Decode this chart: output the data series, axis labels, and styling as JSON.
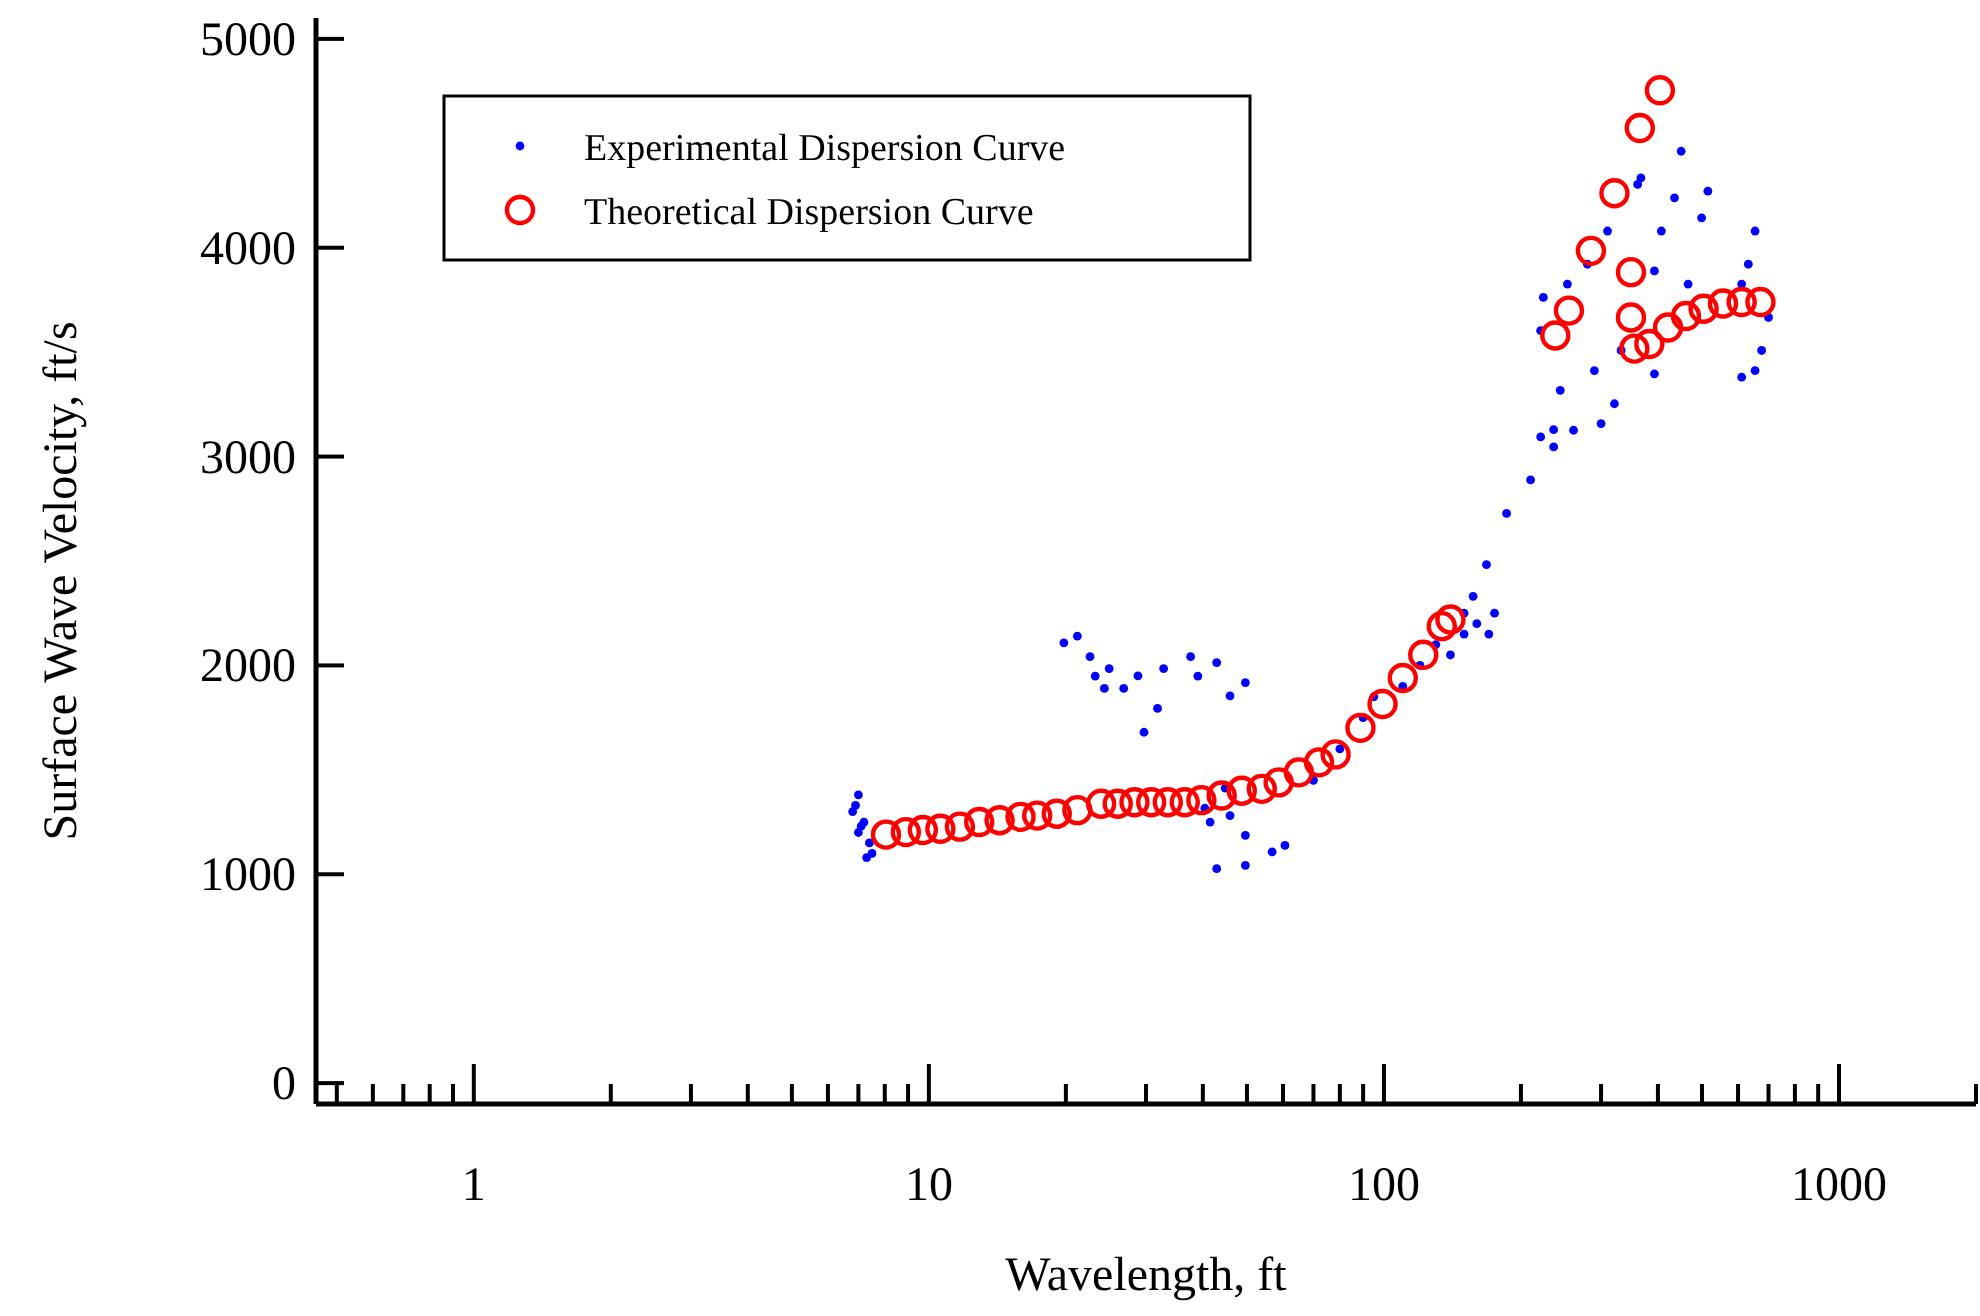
{
  "chart_data": {
    "type": "scatter",
    "xlabel": "Wavelength, ft",
    "ylabel": "Surface Wave Velocity, ft/s",
    "log": "x",
    "xlim": [
      0.45,
      2000
    ],
    "ylim": [
      -100,
      5100
    ],
    "xticks": [
      {
        "value": 0.5,
        "label": null
      },
      {
        "value": 0.6,
        "label": null
      },
      {
        "value": 0.7,
        "label": null
      },
      {
        "value": 0.8,
        "label": null
      },
      {
        "value": 0.9,
        "label": null
      },
      1,
      {
        "value": 2,
        "label": null
      },
      {
        "value": 3,
        "label": null
      },
      {
        "value": 4,
        "label": null
      },
      {
        "value": 5,
        "label": null
      },
      {
        "value": 6,
        "label": null
      },
      {
        "value": 7,
        "label": null
      },
      {
        "value": 8,
        "label": null
      },
      {
        "value": 9,
        "label": null
      },
      10,
      {
        "value": 20,
        "label": null
      },
      {
        "value": 30,
        "label": null
      },
      {
        "value": 40,
        "label": null
      },
      {
        "value": 50,
        "label": null
      },
      {
        "value": 60,
        "label": null
      },
      {
        "value": 70,
        "label": null
      },
      {
        "value": 80,
        "label": null
      },
      {
        "value": 90,
        "label": null
      },
      100,
      {
        "value": 200,
        "label": null
      },
      {
        "value": 300,
        "label": null
      },
      {
        "value": 400,
        "label": null
      },
      {
        "value": 500,
        "label": null
      },
      {
        "value": 600,
        "label": null
      },
      {
        "value": 700,
        "label": null
      },
      {
        "value": 800,
        "label": null
      },
      {
        "value": 900,
        "label": null
      },
      1000,
      {
        "value": 2000,
        "label": null
      }
    ],
    "yticks": [
      0,
      1000,
      2000,
      3000,
      4000,
      5000
    ],
    "grid": false,
    "legend": "top left",
    "marker": "circle",
    "series": [
      {
        "name": "Experimental Dispersion Curve",
        "color": "#0000ff",
        "x": [
          7.0,
          6.8,
          7.2,
          7.0,
          7.4,
          7.5,
          7.3,
          6.9,
          7.1,
          19.8,
          21.2,
          22.6,
          23.2,
          24.9,
          26.8,
          28.8,
          32.8,
          37.6,
          39,
          42.9,
          45.9,
          49.6,
          29.7,
          31.8,
          24.3,
          42.9,
          49.6,
          56.8,
          60.6,
          45.9,
          41.5,
          44.8,
          40.4,
          49.6,
          70,
          80,
          90,
          95,
          110,
          120,
          130,
          150,
          150,
          160,
          170,
          175,
          140,
          186,
          168,
          157,
          210,
          221,
          236,
          244,
          224,
          221,
          253,
          280,
          310,
          361,
          367,
          290,
          300,
          321,
          332,
          393,
          407,
          450,
          435,
          466,
          515,
          499,
          393,
          654,
          632,
          611,
          700,
          654,
          611,
          676,
          261,
          236
        ],
        "values": [
          1380,
          1300,
          1250,
          1200,
          1150,
          1100,
          1080,
          1330,
          1230,
          2108,
          2140,
          2042,
          1949,
          1985,
          1890,
          1950,
          1985,
          2042,
          1949,
          2013,
          1854,
          1918,
          1680,
          1794,
          1890,
          1027,
          1043,
          1107,
          1138,
          1281,
          1250,
          1412,
          1316,
          1186,
          1450,
          1600,
          1750,
          1850,
          1900,
          2000,
          2100,
          2250,
          2150,
          2200,
          2150,
          2250,
          2050,
          2728,
          2483,
          2331,
          2888,
          3094,
          3129,
          3317,
          3762,
          3603,
          3826,
          3921,
          4080,
          4303,
          4334,
          3412,
          3158,
          3253,
          3508,
          3889,
          4080,
          4462,
          4239,
          3826,
          4271,
          4143,
          3396,
          4080,
          3921,
          3826,
          3666,
          3412,
          3380,
          3508,
          3126,
          3046
        ]
      },
      {
        "name": "Theoretical Dispersion Curve",
        "color": "#ff0000",
        "x": [
          8.05,
          8.9,
          9.7,
          10.6,
          11.7,
          12.9,
          14.3,
          15.9,
          17.3,
          19.1,
          21.2,
          23.9,
          26.0,
          28.3,
          30.8,
          33.5,
          36.5,
          39.7,
          44.0,
          48.7,
          53.9,
          58.7,
          65.0,
          72.0,
          78.3,
          88.8,
          99.3,
          110,
          122,
          134,
          140,
          238,
          255,
          285,
          321,
          365,
          404,
          349,
          349,
          355,
          383,
          421,
          461,
          504,
          556,
          611,
          672
        ],
        "values": [
          1190,
          1202,
          1212,
          1218,
          1228,
          1250,
          1259,
          1275,
          1281,
          1290,
          1307,
          1338,
          1338,
          1345,
          1345,
          1345,
          1345,
          1355,
          1377,
          1400,
          1409,
          1440,
          1488,
          1536,
          1574,
          1701,
          1815,
          1940,
          2051,
          2188,
          2220,
          3580,
          3699,
          3985,
          4261,
          4573,
          4754,
          3883,
          3666,
          3517,
          3539,
          3618,
          3673,
          3708,
          3733,
          3740,
          3740
        ]
      }
    ]
  }
}
